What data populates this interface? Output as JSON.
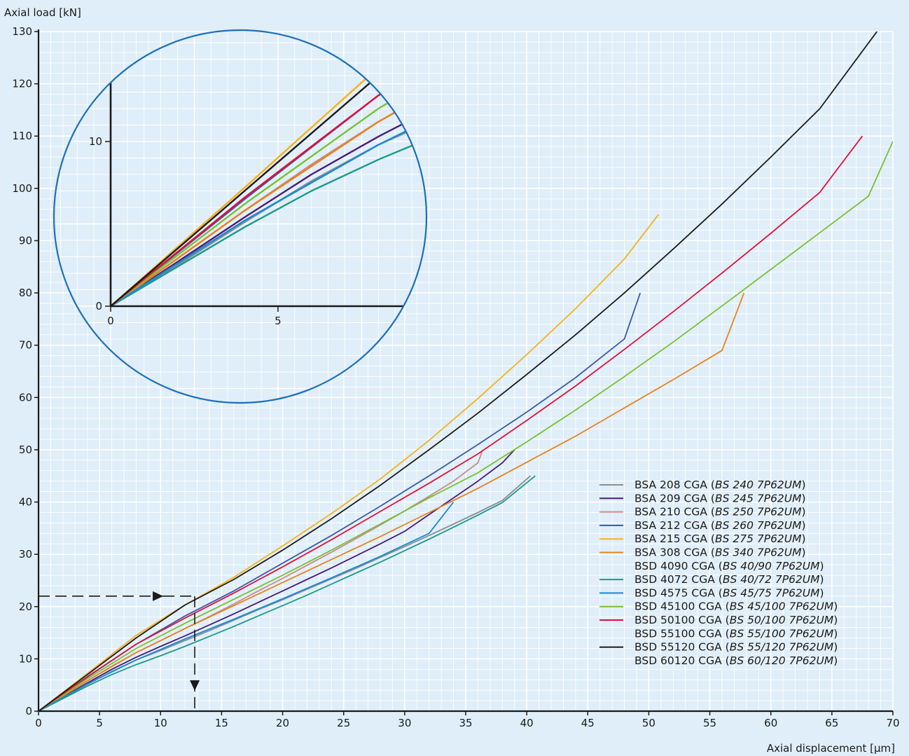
{
  "chart_data": {
    "type": "line",
    "xlabel": "Axial displacement [µm]",
    "ylabel": "Axial load [kN]",
    "xlim": [
      0,
      70
    ],
    "ylim": [
      0,
      130
    ],
    "x_ticks": [
      "0",
      "5",
      "10",
      "15",
      "20",
      "25",
      "30",
      "35",
      "40",
      "45",
      "50",
      "55",
      "60",
      "65",
      "70"
    ],
    "y_ticks": [
      "0",
      "10",
      "20",
      "30",
      "40",
      "50",
      "60",
      "70",
      "80",
      "90",
      "100",
      "110",
      "120",
      "130"
    ],
    "grid": true,
    "legend_position": "bottom-right",
    "series": [
      {
        "name": "BSA 208 CGA (",
        "name_italic": "BS 240 7P62UM",
        "name_end": ")",
        "color": "#8c8c96",
        "points": [
          [
            0,
            0
          ],
          [
            2,
            2.5
          ],
          [
            4,
            5.1
          ],
          [
            6,
            7.6
          ],
          [
            8,
            9.8
          ],
          [
            10,
            11.6
          ],
          [
            12,
            13.5
          ],
          [
            14,
            15.4
          ],
          [
            16,
            17.4
          ],
          [
            18,
            19.4
          ],
          [
            20,
            21.3
          ],
          [
            22,
            23.3
          ],
          [
            24,
            25.3
          ],
          [
            26,
            27.3
          ],
          [
            28,
            29.4
          ],
          [
            30,
            31.5
          ],
          [
            32,
            33.6
          ],
          [
            34,
            35.8
          ],
          [
            36,
            38.0
          ],
          [
            38,
            40.3
          ],
          [
            40.3,
            45.0
          ]
        ]
      },
      {
        "name": "BSA 209 CGA (",
        "name_italic": "BS 245 7P62UM",
        "name_end": ")",
        "color": "#4a1a7a",
        "points": [
          [
            0,
            0
          ],
          [
            2,
            2.7
          ],
          [
            4,
            5.4
          ],
          [
            6,
            8.0
          ],
          [
            8,
            10.3
          ],
          [
            10,
            12.4
          ],
          [
            12,
            14.4
          ],
          [
            14,
            16.5
          ],
          [
            16,
            18.6
          ],
          [
            18,
            20.8
          ],
          [
            20,
            23.0
          ],
          [
            22,
            25.2
          ],
          [
            24,
            27.4
          ],
          [
            26,
            29.7
          ],
          [
            28,
            32.0
          ],
          [
            30,
            34.4
          ],
          [
            32,
            37.6
          ],
          [
            34,
            40.8
          ],
          [
            36,
            44.0
          ],
          [
            38,
            47.5
          ],
          [
            39,
            50.0
          ]
        ]
      },
      {
        "name": "BSA 210 CGA (",
        "name_italic": "BS 250 7P62UM",
        "name_end": ")",
        "color": "#c98a8a",
        "points": [
          [
            0,
            0
          ],
          [
            2,
            2.9
          ],
          [
            4,
            5.8
          ],
          [
            6,
            8.6
          ],
          [
            8,
            11.2
          ],
          [
            10,
            13.5
          ],
          [
            12,
            15.8
          ],
          [
            14,
            18.1
          ],
          [
            16,
            20.5
          ],
          [
            18,
            23.0
          ],
          [
            20,
            25.4
          ],
          [
            22,
            27.9
          ],
          [
            24,
            30.4
          ],
          [
            26,
            33.0
          ],
          [
            28,
            35.6
          ],
          [
            30,
            38.3
          ],
          [
            32,
            41.1
          ],
          [
            34,
            44.0
          ],
          [
            36,
            47.5
          ],
          [
            36.4,
            50.0
          ]
        ]
      },
      {
        "name": "BSA 212 CGA (",
        "name_italic": "BS 260 7P62UM",
        "name_end": ")",
        "color": "#3a5aa8",
        "points": [
          [
            0,
            0
          ],
          [
            4,
            6.5
          ],
          [
            8,
            12.8
          ],
          [
            12,
            18.2
          ],
          [
            16,
            23.0
          ],
          [
            20,
            28.3
          ],
          [
            24,
            33.6
          ],
          [
            28,
            39.2
          ],
          [
            32,
            45.0
          ],
          [
            36,
            51.0
          ],
          [
            40,
            57.2
          ],
          [
            44,
            63.8
          ],
          [
            48,
            71.2
          ],
          [
            49.3,
            80.0
          ]
        ]
      },
      {
        "name": "BSA 215 CGA (",
        "name_italic": "BS 275 7P62UM",
        "name_end": ")",
        "color": "#f5b21a",
        "points": [
          [
            0,
            0
          ],
          [
            4,
            7.2
          ],
          [
            8,
            14.5
          ],
          [
            12,
            20.3
          ],
          [
            16,
            25.6
          ],
          [
            20,
            31.6
          ],
          [
            24,
            37.8
          ],
          [
            28,
            44.4
          ],
          [
            32,
            51.8
          ],
          [
            36,
            59.8
          ],
          [
            40,
            68.2
          ],
          [
            44,
            77.0
          ],
          [
            48,
            86.5
          ],
          [
            50.8,
            95.0
          ]
        ]
      },
      {
        "name": "BSA 308 CGA (",
        "name_italic": "BS 340 7P62UM",
        "name_end": ")",
        "color": "#e8821e",
        "points": [
          [
            0,
            0
          ],
          [
            4,
            5.8
          ],
          [
            8,
            11.2
          ],
          [
            12,
            15.8
          ],
          [
            16,
            20.2
          ],
          [
            20,
            24.6
          ],
          [
            24,
            29.0
          ],
          [
            28,
            33.4
          ],
          [
            32,
            38.0
          ],
          [
            36,
            42.6
          ],
          [
            40,
            47.6
          ],
          [
            44,
            52.6
          ],
          [
            48,
            58.0
          ],
          [
            52,
            63.4
          ],
          [
            56,
            69.0
          ],
          [
            57.8,
            80.0
          ]
        ]
      },
      {
        "name": "BSD 4090 CGA (",
        "name_italic": "BS 40/90 7P62UM",
        "name_end": ")",
        "color": "",
        "points": []
      },
      {
        "name": "BSD 4072 CGA (",
        "name_italic": "BS 40/72 7P62UM",
        "name_end": ")",
        "color": "#1a9a8a",
        "points": [
          [
            0,
            0
          ],
          [
            2,
            2.4
          ],
          [
            4,
            4.8
          ],
          [
            6,
            7.0
          ],
          [
            8,
            8.9
          ],
          [
            10,
            10.6
          ],
          [
            12,
            12.4
          ],
          [
            14,
            14.3
          ],
          [
            16,
            16.2
          ],
          [
            18,
            18.2
          ],
          [
            20,
            20.2
          ],
          [
            22,
            22.2
          ],
          [
            24,
            24.3
          ],
          [
            26,
            26.4
          ],
          [
            28,
            28.5
          ],
          [
            30,
            30.7
          ],
          [
            32,
            32.9
          ],
          [
            34,
            35.2
          ],
          [
            36,
            37.5
          ],
          [
            38,
            39.9
          ],
          [
            40.7,
            45.0
          ]
        ]
      },
      {
        "name": "BSD 4575 CGA (",
        "name_italic": "BS 45/75 7P62UM",
        "name_end": ")",
        "color": "#1a8ad0",
        "points": [
          [
            0,
            0
          ],
          [
            4,
            5.2
          ],
          [
            8,
            9.8
          ],
          [
            12,
            13.8
          ],
          [
            16,
            17.6
          ],
          [
            20,
            21.5
          ],
          [
            24,
            25.5
          ],
          [
            28,
            29.6
          ],
          [
            32,
            34.0
          ],
          [
            34,
            40.0
          ]
        ]
      },
      {
        "name": "BSD 45100 CGA (",
        "name_italic": "BS 45/100 7P62UM",
        "name_end": ")",
        "color": "#7ac030",
        "points": [
          [
            0,
            0
          ],
          [
            4,
            6.2
          ],
          [
            8,
            12.0
          ],
          [
            12,
            16.8
          ],
          [
            16,
            21.4
          ],
          [
            20,
            26.0
          ],
          [
            24,
            30.8
          ],
          [
            28,
            35.8
          ],
          [
            32,
            40.8
          ],
          [
            36,
            45.6
          ],
          [
            40,
            51.5
          ],
          [
            44,
            57.6
          ],
          [
            48,
            64.0
          ],
          [
            52,
            70.6
          ],
          [
            56,
            77.5
          ],
          [
            60,
            84.5
          ],
          [
            64,
            91.5
          ],
          [
            68,
            98.5
          ],
          [
            70,
            109.0
          ]
        ]
      },
      {
        "name": "BSD 50100 CGA (",
        "name_italic": "BS 50/100 7P62UM",
        "name_end": ")",
        "color": "#e0103a",
        "points": [
          [
            0,
            0
          ],
          [
            4,
            6.6
          ],
          [
            8,
            12.8
          ],
          [
            12,
            17.8
          ],
          [
            16,
            22.6
          ],
          [
            20,
            27.6
          ],
          [
            24,
            32.8
          ],
          [
            28,
            38.2
          ],
          [
            32,
            43.6
          ],
          [
            36,
            49.2
          ],
          [
            40,
            55.6
          ],
          [
            44,
            62.2
          ],
          [
            48,
            69.2
          ],
          [
            52,
            76.4
          ],
          [
            56,
            83.8
          ],
          [
            60,
            91.4
          ],
          [
            64,
            99.2
          ],
          [
            67.5,
            110.0
          ]
        ]
      },
      {
        "name": "BSD 55100 CGA (",
        "name_italic": "BS 55/100 7P62UM",
        "name_end": ")",
        "color": "",
        "points": []
      },
      {
        "name": "BSD 55120 CGA (",
        "name_italic": "BS 55/120 7P62UM",
        "name_end": ")",
        "color": "#1a1a1a",
        "points": [
          [
            0,
            0
          ],
          [
            4,
            7.0
          ],
          [
            8,
            14.0
          ],
          [
            12,
            20.3
          ],
          [
            16,
            25.2
          ],
          [
            20,
            30.8
          ],
          [
            24,
            36.8
          ],
          [
            28,
            43.2
          ],
          [
            32,
            50.0
          ],
          [
            36,
            57.0
          ],
          [
            40,
            64.4
          ],
          [
            44,
            72.0
          ],
          [
            48,
            80.0
          ],
          [
            52,
            88.4
          ],
          [
            56,
            97.0
          ],
          [
            60,
            106.0
          ],
          [
            64,
            115.2
          ],
          [
            68.7,
            130.0
          ]
        ]
      },
      {
        "name": "BSD 60120 CGA (",
        "name_italic": "BS 60/120 7P62UM",
        "name_end": ")",
        "color": "",
        "points": []
      }
    ],
    "annotation": {
      "load_value": 22,
      "displacement_value": 12.8
    },
    "inset": {
      "xlim": [
        0,
        9.5
      ],
      "ylim": [
        0,
        14
      ],
      "x_ticks": [
        "0",
        "5"
      ],
      "y_ticks": [
        "0",
        "10"
      ],
      "x_tick_values": [
        0,
        5
      ],
      "y_tick_values": [
        0,
        10
      ]
    }
  }
}
